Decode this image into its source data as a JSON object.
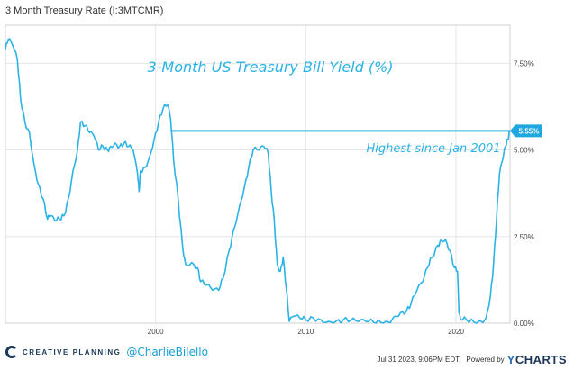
{
  "header": {
    "title": "3 Month Treasury Rate (I:3MTCMR)"
  },
  "footer": {
    "brand": "CREATIVE PLANNING",
    "handle": "@CharlieBilello",
    "timestamp": "Jul 31 2023, 9:06PM EDT.",
    "powered_by": "Powered by",
    "logo_text": "CHARTS",
    "logo_letter": "Y"
  },
  "colors": {
    "line": "#2bb3e6",
    "label_bg": "#1fa8e0",
    "grid": "#e6e6e6"
  },
  "chart_data": {
    "type": "line",
    "title": "3-Month US Treasury Bill Yield (%)",
    "annotation": "Highest since Jan 2001",
    "last_value_label": "5.55%",
    "reference_level": 5.55,
    "reference_start": 2001.0,
    "ylim": [
      0,
      8.6
    ],
    "xlim": [
      1990.0,
      2023.6
    ],
    "yticks": [
      {
        "v": 0,
        "label": "0.00%"
      },
      {
        "v": 2.5,
        "label": "2.50%"
      },
      {
        "v": 5.0,
        "label": "5.00%"
      },
      {
        "v": 7.5,
        "label": "7.50%"
      }
    ],
    "xticks": [
      {
        "v": 2000,
        "label": "2000"
      },
      {
        "v": 2010,
        "label": "2010"
      },
      {
        "v": 2020,
        "label": "2020"
      }
    ],
    "grid": true,
    "series": [
      {
        "values": [
          [
            1990.0,
            7.9
          ],
          [
            1990.2,
            8.2
          ],
          [
            1990.5,
            8.0
          ],
          [
            1990.8,
            7.6
          ],
          [
            1991.0,
            6.5
          ],
          [
            1991.3,
            5.8
          ],
          [
            1991.6,
            5.5
          ],
          [
            1991.9,
            4.6
          ],
          [
            1992.2,
            4.0
          ],
          [
            1992.5,
            3.6
          ],
          [
            1992.8,
            3.0
          ],
          [
            1993.0,
            3.1
          ],
          [
            1993.3,
            2.95
          ],
          [
            1993.6,
            3.0
          ],
          [
            1993.9,
            3.1
          ],
          [
            1994.2,
            3.6
          ],
          [
            1994.5,
            4.4
          ],
          [
            1994.8,
            5.0
          ],
          [
            1995.0,
            5.8
          ],
          [
            1995.3,
            5.7
          ],
          [
            1995.6,
            5.5
          ],
          [
            1995.9,
            5.4
          ],
          [
            1996.2,
            5.0
          ],
          [
            1996.5,
            5.1
          ],
          [
            1996.8,
            5.0
          ],
          [
            1997.0,
            5.1
          ],
          [
            1997.3,
            5.2
          ],
          [
            1997.6,
            5.1
          ],
          [
            1997.9,
            5.2
          ],
          [
            1998.2,
            5.1
          ],
          [
            1998.5,
            5.0
          ],
          [
            1998.8,
            4.3
          ],
          [
            1998.9,
            3.8
          ],
          [
            1999.0,
            4.4
          ],
          [
            1999.3,
            4.5
          ],
          [
            1999.6,
            4.8
          ],
          [
            1999.9,
            5.3
          ],
          [
            2000.2,
            5.8
          ],
          [
            2000.5,
            6.2
          ],
          [
            2000.8,
            6.3
          ],
          [
            2001.0,
            5.9
          ],
          [
            2001.2,
            4.7
          ],
          [
            2001.5,
            3.6
          ],
          [
            2001.8,
            2.2
          ],
          [
            2002.0,
            1.7
          ],
          [
            2002.4,
            1.75
          ],
          [
            2002.8,
            1.6
          ],
          [
            2003.0,
            1.2
          ],
          [
            2003.4,
            1.1
          ],
          [
            2003.8,
            0.95
          ],
          [
            2004.2,
            0.95
          ],
          [
            2004.5,
            1.3
          ],
          [
            2004.9,
            2.1
          ],
          [
            2005.2,
            2.7
          ],
          [
            2005.6,
            3.4
          ],
          [
            2005.9,
            3.9
          ],
          [
            2006.2,
            4.5
          ],
          [
            2006.5,
            5.0
          ],
          [
            2006.9,
            5.0
          ],
          [
            2007.2,
            5.1
          ],
          [
            2007.5,
            4.9
          ],
          [
            2007.7,
            3.8
          ],
          [
            2007.9,
            3.0
          ],
          [
            2008.1,
            1.7
          ],
          [
            2008.3,
            1.5
          ],
          [
            2008.5,
            1.9
          ],
          [
            2008.7,
            1.0
          ],
          [
            2008.9,
            0.05
          ],
          [
            2009.2,
            0.2
          ],
          [
            2009.6,
            0.15
          ],
          [
            2010.0,
            0.1
          ],
          [
            2010.5,
            0.15
          ],
          [
            2011.0,
            0.1
          ],
          [
            2011.5,
            0.05
          ],
          [
            2012.0,
            0.05
          ],
          [
            2012.5,
            0.1
          ],
          [
            2013.0,
            0.08
          ],
          [
            2013.5,
            0.05
          ],
          [
            2014.0,
            0.05
          ],
          [
            2014.5,
            0.03
          ],
          [
            2015.0,
            0.02
          ],
          [
            2015.5,
            0.03
          ],
          [
            2015.9,
            0.2
          ],
          [
            2016.3,
            0.3
          ],
          [
            2016.7,
            0.35
          ],
          [
            2017.0,
            0.55
          ],
          [
            2017.4,
            0.95
          ],
          [
            2017.8,
            1.2
          ],
          [
            2018.1,
            1.6
          ],
          [
            2018.4,
            1.9
          ],
          [
            2018.8,
            2.25
          ],
          [
            2019.0,
            2.4
          ],
          [
            2019.3,
            2.42
          ],
          [
            2019.6,
            2.1
          ],
          [
            2019.9,
            1.6
          ],
          [
            2020.1,
            1.5
          ],
          [
            2020.2,
            0.3
          ],
          [
            2020.3,
            0.1
          ],
          [
            2020.7,
            0.1
          ],
          [
            2021.2,
            0.03
          ],
          [
            2021.7,
            0.05
          ],
          [
            2022.0,
            0.15
          ],
          [
            2022.3,
            0.8
          ],
          [
            2022.5,
            1.7
          ],
          [
            2022.7,
            3.0
          ],
          [
            2022.9,
            4.3
          ],
          [
            2023.1,
            4.7
          ],
          [
            2023.3,
            5.1
          ],
          [
            2023.45,
            5.3
          ],
          [
            2023.58,
            5.55
          ]
        ]
      }
    ]
  }
}
